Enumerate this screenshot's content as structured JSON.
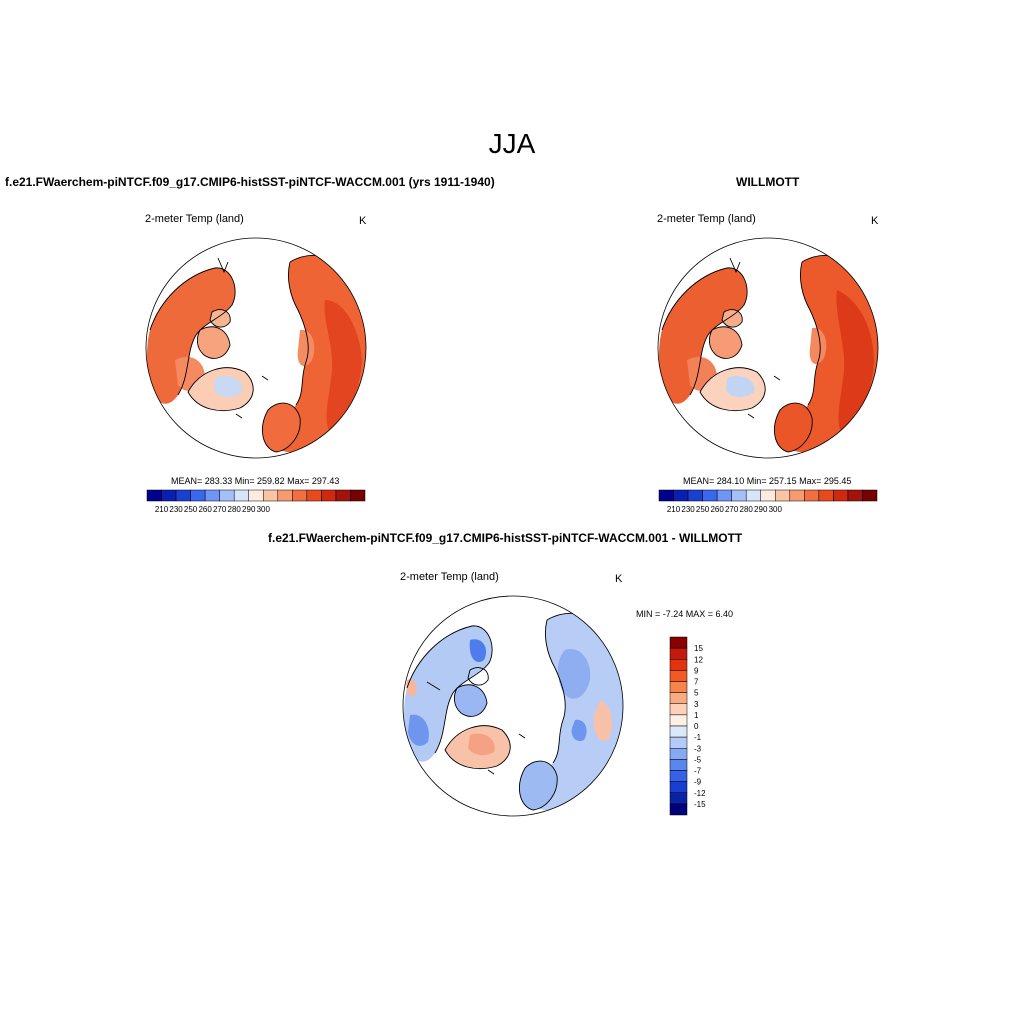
{
  "page_title": "JJA",
  "panels": [
    {
      "title": "f.e21.FWaerchem-piNTCF.f09_g17.CMIP6-histSST-piNTCF-WACCM.001 (yrs 1911-1940)",
      "left_label": "2-meter Temp (land)",
      "right_label": "K",
      "stats": "MEAN= 283.33  Min= 259.82  Max= 297.43"
    },
    {
      "title": "WILLMOTT",
      "left_label": "2-meter Temp (land)",
      "right_label": "K",
      "stats": "MEAN= 284.10  Min= 257.15  Max= 295.45"
    },
    {
      "title": "f.e21.FWaerchem-piNTCF.f09_g17.CMIP6-histSST-piNTCF-WACCM.001 - WILLMOTT",
      "left_label": "2-meter Temp (land)",
      "right_label": "K",
      "stats": "MIN =  -7.24 MAX =   6.40"
    }
  ],
  "colorbars": {
    "absolute": {
      "labels": [
        "210",
        "230",
        "250",
        "260",
        "270",
        "280",
        "290",
        "300"
      ],
      "colors": [
        "#00008f",
        "#0a1fb0",
        "#1b40d0",
        "#3a66f0",
        "#6f95f7",
        "#a4c0f9",
        "#d6e5fb",
        "#fdebdc",
        "#fbc3a3",
        "#f79a70",
        "#f2703f",
        "#e84a1d",
        "#cf2a10",
        "#a3130b",
        "#770000"
      ]
    },
    "difference": {
      "labels": [
        "15",
        "12",
        "9",
        "7",
        "5",
        "3",
        "1",
        "0",
        "-1",
        "-3",
        "-5",
        "-7",
        "-9",
        "-12",
        "-15"
      ],
      "colors": [
        "#8b0000",
        "#c21a0d",
        "#e2330f",
        "#f35a23",
        "#f7844d",
        "#f9ab83",
        "#fcd1b8",
        "#fdf0e6",
        "#dbe8f8",
        "#b3cbf5",
        "#86a9f2",
        "#5a86ee",
        "#3562e6",
        "#1a3fd0",
        "#0a22a6",
        "#000078"
      ]
    }
  },
  "map_colors": {
    "ocean": "#ffffff",
    "coast": "#000000",
    "warm": "#f06a3c",
    "warmer": "#e94a22",
    "cool": "#f9b090",
    "ice": "#c9d9f4",
    "diff_base": "#b7cdf5",
    "diff_cold": "#6f96ef",
    "diff_warm": "#f6b39a"
  }
}
